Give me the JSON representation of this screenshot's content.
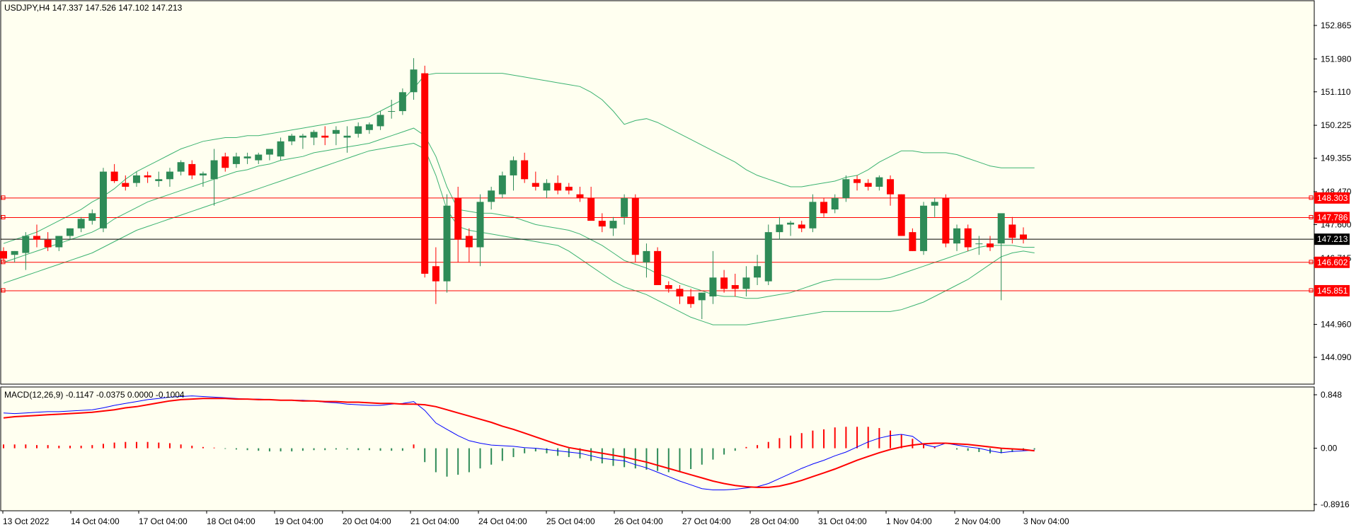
{
  "header": {
    "symbol_info": "USDJPY,H4  147.337 147.526 147.102 147.213",
    "macd_info": "MACD(12,26,9) -0.1147 -0.0375 0.0000 -0.1004"
  },
  "colors": {
    "background": "#fffff0",
    "bull": "#2e8b57",
    "bear": "#ff0000",
    "bands": "#3cb371",
    "macd_line": "#0000ff",
    "signal_line": "#ff0000",
    "hline": "#ff0000",
    "price_line": "#000000"
  },
  "chart_data": [
    {
      "type": "candlestick",
      "symbol": "USDJPY",
      "timeframe": "H4",
      "ylim": [
        143.4,
        153.5
      ],
      "price_ticks": [
        "152.865",
        "151.980",
        "151.110",
        "150.225",
        "149.355",
        "148.470",
        "147.600",
        "146.715",
        "144.960",
        "144.090"
      ],
      "x_labels": [
        "13 Oct 2022",
        "14 Oct 04:00",
        "17 Oct 04:00",
        "18 Oct 04:00",
        "19 Oct 04:00",
        "20 Oct 04:00",
        "21 Oct 04:00",
        "24 Oct 04:00",
        "25 Oct 04:00",
        "26 Oct 04:00",
        "27 Oct 04:00",
        "28 Oct 04:00",
        "31 Oct 04:00",
        "1 Nov 04:00",
        "2 Nov 04:00",
        "3 Nov 04:00"
      ],
      "horizontal_levels": [
        {
          "label": "148.303",
          "value": 148.303
        },
        {
          "label": "147.786",
          "value": 147.786
        },
        {
          "label": "146.602",
          "value": 146.602
        },
        {
          "label": "145.851",
          "value": 145.851
        }
      ],
      "current_price": {
        "label": "147.213",
        "value": 147.213
      },
      "candles": [
        [
          146.9,
          147.0,
          146.6,
          146.7
        ],
        [
          146.8,
          146.9,
          146.6,
          146.9
        ],
        [
          146.85,
          147.4,
          146.4,
          147.3
        ],
        [
          147.3,
          147.6,
          147.0,
          147.2
        ],
        [
          147.2,
          147.4,
          146.9,
          147.0
        ],
        [
          147.0,
          147.3,
          146.9,
          147.3
        ],
        [
          147.3,
          147.5,
          147.2,
          147.5
        ],
        [
          147.5,
          147.8,
          147.4,
          147.75
        ],
        [
          147.7,
          148.0,
          147.6,
          147.9
        ],
        [
          147.5,
          149.1,
          147.4,
          149.0
        ],
        [
          149.0,
          149.2,
          148.7,
          148.75
        ],
        [
          148.7,
          148.9,
          148.5,
          148.6
        ],
        [
          148.7,
          149.0,
          148.6,
          148.9
        ],
        [
          148.9,
          149.0,
          148.7,
          148.85
        ],
        [
          148.75,
          149.0,
          148.6,
          148.8
        ],
        [
          148.8,
          149.1,
          148.6,
          149.0
        ],
        [
          149.0,
          149.3,
          148.9,
          149.25
        ],
        [
          149.2,
          149.3,
          148.8,
          148.9
        ],
        [
          148.9,
          149.0,
          148.6,
          148.95
        ],
        [
          148.8,
          149.6,
          148.1,
          149.3
        ],
        [
          149.4,
          149.5,
          149.0,
          149.1
        ],
        [
          149.2,
          149.5,
          149.1,
          149.4
        ],
        [
          149.35,
          149.5,
          149.2,
          149.4
        ],
        [
          149.3,
          149.5,
          149.2,
          149.45
        ],
        [
          149.45,
          149.6,
          149.3,
          149.6
        ],
        [
          149.4,
          149.9,
          149.3,
          149.8
        ],
        [
          149.8,
          150.0,
          149.7,
          149.95
        ],
        [
          149.9,
          150.0,
          149.6,
          149.95
        ],
        [
          149.9,
          150.1,
          149.7,
          150.05
        ],
        [
          149.95,
          150.2,
          149.7,
          149.9
        ],
        [
          150.0,
          150.2,
          149.7,
          150.1
        ],
        [
          149.9,
          150.2,
          149.5,
          149.95
        ],
        [
          150.0,
          150.3,
          149.9,
          150.2
        ],
        [
          150.1,
          150.3,
          150.0,
          150.25
        ],
        [
          150.2,
          150.6,
          150.1,
          150.5
        ],
        [
          150.6,
          150.9,
          150.4,
          150.6
        ],
        [
          150.6,
          151.2,
          150.5,
          151.1
        ],
        [
          151.1,
          152.0,
          150.9,
          151.7
        ],
        [
          151.6,
          151.8,
          146.2,
          146.3
        ],
        [
          146.5,
          147.0,
          145.5,
          146.1
        ],
        [
          146.1,
          148.4,
          145.8,
          148.1
        ],
        [
          148.3,
          148.6,
          146.6,
          147.2
        ],
        [
          147.3,
          147.5,
          146.6,
          147.0
        ],
        [
          147.0,
          148.4,
          146.5,
          148.2
        ],
        [
          148.2,
          148.6,
          148.0,
          148.5
        ],
        [
          148.4,
          149.0,
          148.3,
          148.9
        ],
        [
          148.9,
          149.4,
          148.5,
          149.3
        ],
        [
          149.3,
          149.5,
          148.7,
          148.8
        ],
        [
          148.7,
          149.0,
          148.5,
          148.6
        ],
        [
          148.5,
          148.8,
          148.3,
          148.7
        ],
        [
          148.7,
          148.9,
          148.4,
          148.5
        ],
        [
          148.6,
          148.7,
          148.4,
          148.5
        ],
        [
          148.4,
          148.6,
          148.2,
          148.3
        ],
        [
          148.3,
          148.6,
          147.8,
          147.7
        ],
        [
          147.7,
          147.9,
          147.4,
          147.55
        ],
        [
          147.5,
          147.8,
          147.3,
          147.7
        ],
        [
          147.8,
          148.4,
          147.6,
          148.3
        ],
        [
          148.3,
          148.4,
          146.6,
          146.8
        ],
        [
          146.6,
          147.1,
          146.2,
          146.9
        ],
        [
          146.9,
          147.0,
          146.1,
          146.0
        ],
        [
          146.0,
          146.1,
          145.8,
          145.9
        ],
        [
          145.9,
          146.0,
          145.5,
          145.7
        ],
        [
          145.7,
          145.9,
          145.4,
          145.5
        ],
        [
          145.6,
          145.8,
          145.1,
          145.8
        ],
        [
          145.7,
          146.9,
          145.5,
          146.2
        ],
        [
          146.2,
          146.4,
          145.8,
          145.9
        ],
        [
          146.0,
          146.3,
          145.7,
          145.9
        ],
        [
          145.9,
          146.5,
          145.7,
          146.2
        ],
        [
          146.2,
          146.8,
          146.0,
          146.5
        ],
        [
          146.1,
          147.6,
          146.0,
          147.4
        ],
        [
          147.4,
          147.8,
          147.2,
          147.6
        ],
        [
          147.6,
          147.7,
          147.3,
          147.65
        ],
        [
          147.6,
          147.7,
          147.4,
          147.5
        ],
        [
          147.5,
          148.4,
          147.4,
          148.2
        ],
        [
          148.2,
          148.3,
          147.8,
          147.9
        ],
        [
          148.0,
          148.4,
          147.9,
          148.3
        ],
        [
          148.3,
          148.9,
          148.2,
          148.8
        ],
        [
          148.8,
          148.9,
          148.5,
          148.7
        ],
        [
          148.7,
          148.8,
          148.5,
          148.6
        ],
        [
          148.6,
          148.9,
          148.5,
          148.85
        ],
        [
          148.8,
          148.9,
          148.1,
          148.4
        ],
        [
          148.4,
          148.4,
          147.3,
          147.3
        ],
        [
          147.4,
          147.5,
          146.9,
          146.9
        ],
        [
          146.9,
          148.2,
          146.8,
          148.1
        ],
        [
          148.1,
          148.3,
          147.8,
          148.2
        ],
        [
          148.3,
          148.4,
          147.0,
          147.1
        ],
        [
          147.1,
          147.6,
          146.9,
          147.5
        ],
        [
          147.5,
          147.6,
          146.9,
          147.0
        ],
        [
          147.1,
          147.3,
          146.8,
          147.1
        ],
        [
          147.1,
          147.3,
          146.9,
          147.0
        ],
        [
          147.1,
          147.8,
          145.6,
          147.9
        ],
        [
          147.6,
          147.8,
          147.1,
          147.25
        ],
        [
          147.337,
          147.526,
          147.102,
          147.213
        ]
      ],
      "bollinger": {
        "upper": [
          147.1,
          147.2,
          147.3,
          147.4,
          147.55,
          147.7,
          147.85,
          148.0,
          148.2,
          148.35,
          148.55,
          148.8,
          149.0,
          149.15,
          149.3,
          149.45,
          149.6,
          149.7,
          149.8,
          149.85,
          149.9,
          149.9,
          149.95,
          149.95,
          150.0,
          150.05,
          150.1,
          150.15,
          150.2,
          150.25,
          150.3,
          150.35,
          150.4,
          150.45,
          150.6,
          150.75,
          150.9,
          151.2,
          151.55,
          151.6,
          151.6,
          151.6,
          151.6,
          151.6,
          151.6,
          151.6,
          151.55,
          151.5,
          151.45,
          151.4,
          151.35,
          151.3,
          151.25,
          151.1,
          150.9,
          150.6,
          150.25,
          150.35,
          150.4,
          150.3,
          150.15,
          150.0,
          149.85,
          149.7,
          149.55,
          149.4,
          149.25,
          149.05,
          148.9,
          148.8,
          148.7,
          148.6,
          148.6,
          148.65,
          148.7,
          148.75,
          148.85,
          148.9,
          149.05,
          149.25,
          149.4,
          149.55,
          149.55,
          149.5,
          149.5,
          149.5,
          149.45,
          149.35,
          149.25,
          149.15,
          149.1,
          149.1,
          149.1,
          149.1
        ],
        "middle": [
          146.6,
          146.7,
          146.8,
          146.9,
          147.0,
          147.1,
          147.2,
          147.3,
          147.4,
          147.55,
          147.75,
          147.9,
          148.05,
          148.2,
          148.3,
          148.4,
          148.5,
          148.6,
          148.7,
          148.8,
          148.9,
          149.0,
          149.05,
          149.15,
          149.2,
          149.3,
          149.35,
          149.4,
          149.5,
          149.55,
          149.6,
          149.65,
          149.7,
          149.75,
          149.85,
          149.95,
          150.05,
          150.15,
          149.95,
          149.4,
          148.6,
          148.0,
          147.95,
          147.9,
          147.9,
          147.85,
          147.8,
          147.7,
          147.6,
          147.55,
          147.5,
          147.45,
          147.35,
          147.2,
          147.05,
          146.85,
          146.65,
          146.55,
          146.45,
          146.3,
          146.2,
          146.05,
          145.95,
          145.85,
          145.75,
          145.7,
          145.7,
          145.65,
          145.65,
          145.7,
          145.75,
          145.8,
          145.9,
          146.0,
          146.1,
          146.15,
          146.15,
          146.15,
          146.15,
          146.15,
          146.2,
          146.3,
          146.4,
          146.5,
          146.6,
          146.7,
          146.8,
          146.9,
          147.0,
          147.05,
          147.05,
          147.05,
          147.0,
          147.0
        ],
        "lower": [
          146.05,
          146.15,
          146.25,
          146.35,
          146.45,
          146.55,
          146.65,
          146.75,
          146.85,
          147.0,
          147.15,
          147.3,
          147.45,
          147.55,
          147.65,
          147.75,
          147.85,
          147.95,
          148.05,
          148.15,
          148.25,
          148.35,
          148.45,
          148.55,
          148.65,
          148.75,
          148.85,
          148.95,
          149.05,
          149.15,
          149.25,
          149.35,
          149.45,
          149.55,
          149.6,
          149.65,
          149.7,
          149.75,
          149.6,
          148.9,
          148.0,
          147.55,
          147.45,
          147.4,
          147.35,
          147.3,
          147.25,
          147.2,
          147.15,
          147.1,
          147.05,
          146.9,
          146.7,
          146.5,
          146.3,
          146.1,
          145.95,
          145.85,
          145.75,
          145.6,
          145.45,
          145.3,
          145.15,
          145.05,
          144.95,
          144.95,
          144.95,
          144.95,
          145.0,
          145.05,
          145.1,
          145.15,
          145.2,
          145.25,
          145.3,
          145.3,
          145.3,
          145.3,
          145.3,
          145.3,
          145.3,
          145.35,
          145.45,
          145.55,
          145.7,
          145.85,
          146.0,
          146.15,
          146.35,
          146.55,
          146.75,
          146.85,
          146.9,
          146.85
        ]
      }
    },
    {
      "type": "macd",
      "params": "MACD(12,26,9)",
      "ylim": [
        -0.98,
        0.96
      ],
      "y_ticks": [
        "0.848",
        "0.00",
        "-0.8916"
      ],
      "macd": [
        0.56,
        0.55,
        0.56,
        0.57,
        0.58,
        0.58,
        0.59,
        0.6,
        0.61,
        0.64,
        0.68,
        0.71,
        0.74,
        0.77,
        0.79,
        0.81,
        0.82,
        0.83,
        0.82,
        0.81,
        0.8,
        0.79,
        0.78,
        0.78,
        0.77,
        0.76,
        0.76,
        0.76,
        0.75,
        0.73,
        0.72,
        0.7,
        0.69,
        0.68,
        0.68,
        0.7,
        0.71,
        0.74,
        0.6,
        0.4,
        0.3,
        0.2,
        0.12,
        0.08,
        0.05,
        0.04,
        0.03,
        0.01,
        0.0,
        -0.02,
        -0.04,
        -0.06,
        -0.08,
        -0.12,
        -0.16,
        -0.18,
        -0.2,
        -0.26,
        -0.31,
        -0.38,
        -0.45,
        -0.52,
        -0.58,
        -0.64,
        -0.66,
        -0.66,
        -0.65,
        -0.63,
        -0.61,
        -0.56,
        -0.48,
        -0.4,
        -0.32,
        -0.25,
        -0.19,
        -0.12,
        -0.06,
        0.02,
        0.1,
        0.16,
        0.2,
        0.22,
        0.19,
        0.06,
        0.02,
        0.08,
        0.05,
        0.02,
        0.0,
        -0.04,
        -0.07,
        -0.05,
        -0.04,
        -0.03
      ],
      "signal": [
        0.48,
        0.5,
        0.51,
        0.52,
        0.53,
        0.54,
        0.55,
        0.56,
        0.57,
        0.59,
        0.61,
        0.64,
        0.66,
        0.69,
        0.72,
        0.75,
        0.77,
        0.78,
        0.79,
        0.79,
        0.79,
        0.78,
        0.78,
        0.77,
        0.77,
        0.76,
        0.76,
        0.75,
        0.75,
        0.74,
        0.74,
        0.73,
        0.73,
        0.72,
        0.71,
        0.71,
        0.7,
        0.7,
        0.69,
        0.66,
        0.61,
        0.56,
        0.51,
        0.46,
        0.41,
        0.35,
        0.3,
        0.24,
        0.18,
        0.12,
        0.06,
        0.01,
        -0.02,
        -0.05,
        -0.08,
        -0.11,
        -0.14,
        -0.18,
        -0.22,
        -0.27,
        -0.32,
        -0.37,
        -0.42,
        -0.47,
        -0.52,
        -0.56,
        -0.59,
        -0.61,
        -0.62,
        -0.62,
        -0.6,
        -0.56,
        -0.51,
        -0.45,
        -0.39,
        -0.33,
        -0.26,
        -0.19,
        -0.13,
        -0.07,
        -0.02,
        0.02,
        0.05,
        0.07,
        0.08,
        0.08,
        0.07,
        0.06,
        0.04,
        0.02,
        0.0,
        -0.01,
        -0.02,
        -0.04
      ],
      "histogram": [
        0.06,
        0.06,
        0.06,
        0.05,
        0.05,
        0.04,
        0.04,
        0.04,
        0.05,
        0.07,
        0.09,
        0.1,
        0.1,
        0.1,
        0.09,
        0.08,
        0.06,
        0.04,
        0.02,
        0.01,
        -0.01,
        -0.02,
        -0.03,
        -0.04,
        -0.05,
        -0.05,
        -0.05,
        -0.04,
        -0.03,
        -0.03,
        -0.02,
        -0.02,
        -0.03,
        -0.03,
        -0.04,
        -0.04,
        -0.04,
        0.06,
        -0.22,
        -0.38,
        -0.45,
        -0.42,
        -0.38,
        -0.32,
        -0.26,
        -0.2,
        -0.14,
        -0.08,
        -0.05,
        -0.08,
        -0.12,
        -0.14,
        -0.16,
        -0.2,
        -0.24,
        -0.28,
        -0.3,
        -0.32,
        -0.34,
        -0.36,
        -0.38,
        -0.38,
        -0.33,
        -0.26,
        -0.18,
        -0.1,
        -0.04,
        0.02,
        0.05,
        0.1,
        0.16,
        0.2,
        0.24,
        0.28,
        0.3,
        0.33,
        0.34,
        0.34,
        0.34,
        0.32,
        0.28,
        0.22,
        0.15,
        0.08,
        0.03,
        0.0,
        -0.02,
        -0.04,
        -0.06,
        -0.08,
        -0.08,
        -0.06,
        -0.04,
        -0.02
      ]
    }
  ]
}
